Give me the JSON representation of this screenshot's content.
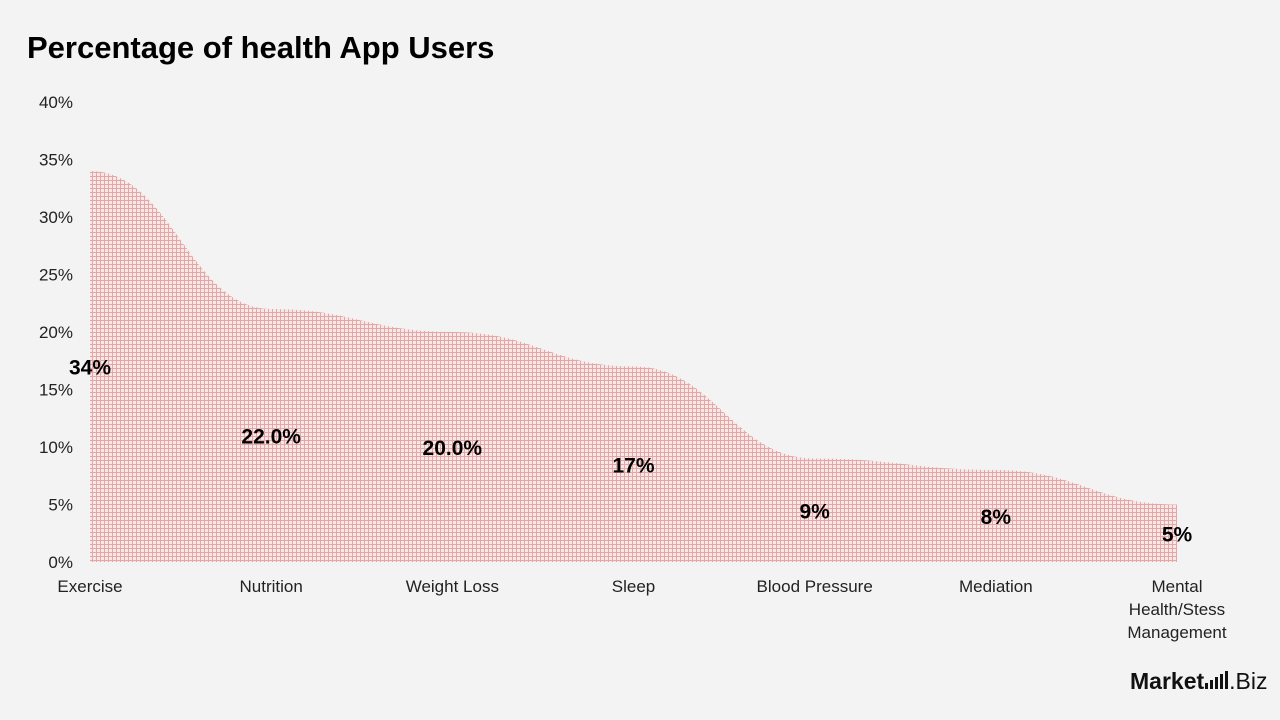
{
  "title": "Percentage of health App Users",
  "brand": {
    "name_strong": "Market",
    "name_rest": ".Biz"
  },
  "colors": {
    "fill_dot": "#e7a6a6",
    "fill_bg": "#f7e8e8",
    "text": "#000000",
    "axis_text": "#222222"
  },
  "chart_data": {
    "type": "area",
    "title": "Percentage of health App Users",
    "categories": [
      "Exercise",
      "Nutrition",
      "Weight Loss",
      "Sleep",
      "Blood Pressure",
      "Mediation",
      "Mental Health/Stess Management"
    ],
    "category_lines": [
      [
        "Exercise"
      ],
      [
        "Nutrition"
      ],
      [
        "Weight Loss"
      ],
      [
        "Sleep"
      ],
      [
        "Blood Pressure"
      ],
      [
        "Mediation"
      ],
      [
        "Mental",
        "Health/Stess",
        "Management"
      ]
    ],
    "values": [
      34,
      22,
      20,
      17,
      9,
      8,
      5
    ],
    "data_labels": [
      "34%",
      "22.0%",
      "20.0%",
      "17%",
      "9%",
      "8%",
      "5%"
    ],
    "yticks": [
      0,
      5,
      10,
      15,
      20,
      25,
      30,
      35,
      40
    ],
    "ytick_labels": [
      "0%",
      "5%",
      "10%",
      "15%",
      "20%",
      "25%",
      "30%",
      "35%",
      "40%"
    ],
    "ylim": [
      0,
      40
    ],
    "xlabel": "",
    "ylabel": "",
    "grid": false,
    "legend": "none"
  }
}
